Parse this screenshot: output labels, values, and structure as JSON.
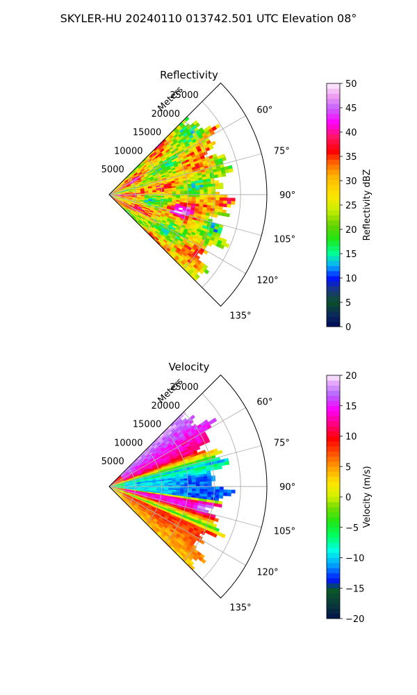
{
  "figure": {
    "suptitle": "SKYLER-HU  20240110  013742.501 UTC Elevation 08°"
  },
  "chart_data": [
    {
      "type": "heatmap",
      "projection": "polar-sector",
      "title": "Reflectivity",
      "radial_label": "Meters",
      "radial_ticks": [
        5000,
        10000,
        15000,
        20000,
        25000
      ],
      "radial_tick_labels": [
        "5000",
        "10000",
        "15000",
        "20000",
        "25000"
      ],
      "range_max_m": 30000,
      "data_range_max_m": 24000,
      "azimuth_range_deg": [
        45,
        135
      ],
      "azimuth_ticks": [
        60,
        75,
        90,
        105,
        120,
        135
      ],
      "azimuth_tick_labels": [
        "60°",
        "75°",
        "90°",
        "105°",
        "120°",
        "135°"
      ],
      "grid": true,
      "colorbar": {
        "label": "Reflectivity dBZ",
        "range": [
          0,
          50
        ],
        "ticks": [
          0,
          5,
          10,
          15,
          20,
          25,
          30,
          35,
          40,
          45,
          50
        ],
        "tick_labels": [
          "0",
          "5",
          "10",
          "15",
          "20",
          "25",
          "30",
          "35",
          "40",
          "45",
          "50"
        ],
        "colormap": "NWSRef"
      },
      "field_summary": "Mostly 20-35 dBZ; near-range 35-40 dBZ streaks; 40-45 dBZ core near 100-105° at ~12-15 km; edges 15-22 dBZ."
    },
    {
      "type": "heatmap",
      "projection": "polar-sector",
      "title": "Velocity",
      "radial_label": "Meters",
      "radial_ticks": [
        5000,
        10000,
        15000,
        20000,
        25000
      ],
      "radial_tick_labels": [
        "5000",
        "10000",
        "15000",
        "20000",
        "25000"
      ],
      "range_max_m": 30000,
      "data_range_max_m": 24000,
      "azimuth_range_deg": [
        45,
        135
      ],
      "azimuth_ticks": [
        60,
        75,
        90,
        105,
        120,
        135
      ],
      "azimuth_tick_labels": [
        "60°",
        "75°",
        "90°",
        "105°",
        "120°",
        "135°"
      ],
      "grid": true,
      "colorbar": {
        "label": "Velocity (m/s)",
        "range": [
          -20,
          20
        ],
        "ticks": [
          -20,
          -15,
          -10,
          -5,
          0,
          5,
          10,
          15,
          20
        ],
        "tick_labels": [
          "−20",
          "−15",
          "−10",
          "−5",
          "0",
          "5",
          "10",
          "15",
          "20"
        ],
        "colormap": "NWSVel"
      },
      "field_summary": "Banded field: +10 to +15 m/s toward north azimuths, -10 to -12 m/s near 85-95°, +12 to +17 m/s near 100-105°, ~0 to -5 m/s near 110°, +10 m/s band near 115-125°."
    }
  ]
}
